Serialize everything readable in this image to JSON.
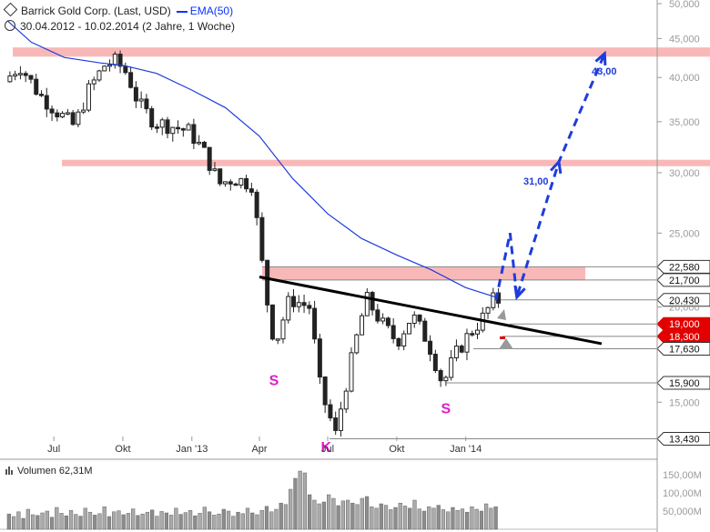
{
  "header": {
    "title": "Barrick Gold Corp. (Last, USD)",
    "ema_label": "EMA(50)",
    "period": "30.04.2012 - 10.02.2014 (2 Jahre, 1 Woche)"
  },
  "volume": {
    "label": "Volumen",
    "value": "62,31M"
  },
  "chart_data": {
    "type": "candlestick",
    "instrument": "Barrick Gold Corp.",
    "scale": "log",
    "ylim": [
      12.8,
      50
    ],
    "y_ticks": [
      "15,000",
      "20,000",
      "25,000",
      "30,000",
      "35,000",
      "40,000",
      "45,000",
      "50,000"
    ],
    "y_tick_values": [
      15,
      20,
      25,
      30,
      35,
      40,
      45,
      50
    ],
    "x_ticks": [
      "Jul",
      "Okt",
      "Jan '13",
      "Apr",
      "Jul",
      "Okt",
      "Jan '14"
    ],
    "x_tick_dates": [
      "2012-07-01",
      "2012-10-01",
      "2013-01-01",
      "2013-04-01",
      "2013-07-01",
      "2013-10-01",
      "2014-01-01"
    ],
    "x_range": [
      "2012-04-30",
      "2014-02-14"
    ],
    "grid": false,
    "colors": {
      "candle": "#222222",
      "ema": "#1e3cdc",
      "zone": "#f9b8b8",
      "level_line": "#888888",
      "trendline": "#000000",
      "projection": "#1e3cdc",
      "label_red": "#e20000",
      "marker_pink": "#e01cc8",
      "volume": "#aaaaaa"
    },
    "ema_series": {
      "name": "EMA(50)",
      "dates": [
        "2012-04-30",
        "2012-06-01",
        "2012-07-15",
        "2012-09-01",
        "2012-10-01",
        "2012-11-15",
        "2013-01-01",
        "2013-02-15",
        "2013-04-01",
        "2013-05-15",
        "2013-07-01",
        "2013-08-15",
        "2013-10-01",
        "2013-11-15",
        "2014-01-01",
        "2014-02-10"
      ],
      "values": [
        47.5,
        44.5,
        42.5,
        41.8,
        41.5,
        40.5,
        38.5,
        36.5,
        33.5,
        29.5,
        26.5,
        24.6,
        23.4,
        22.4,
        21.2,
        20.6
      ]
    },
    "price_points": {
      "dates": [
        "2012-04-30",
        "2012-05-20",
        "2012-06-15",
        "2012-07-10",
        "2012-08-01",
        "2012-08-20",
        "2012-09-10",
        "2012-09-25",
        "2012-10-10",
        "2012-10-25",
        "2012-11-15",
        "2012-12-10",
        "2013-01-01",
        "2013-01-20",
        "2013-02-10",
        "2013-03-01",
        "2013-03-25",
        "2013-04-12",
        "2013-04-25",
        "2013-05-15",
        "2013-06-10",
        "2013-06-25",
        "2013-07-15",
        "2013-08-05",
        "2013-08-25",
        "2013-09-15",
        "2013-10-05",
        "2013-10-25",
        "2013-11-15",
        "2013-12-05",
        "2013-12-20",
        "2014-01-10",
        "2014-01-25",
        "2014-02-10"
      ],
      "values": [
        39.5,
        41.5,
        38.0,
        36.0,
        34.5,
        38.5,
        41.5,
        42.0,
        40.5,
        37.0,
        35.0,
        34.5,
        34.0,
        32.0,
        29.0,
        29.5,
        29.0,
        21.0,
        17.8,
        20.5,
        20.0,
        15.5,
        13.6,
        17.0,
        20.5,
        19.0,
        18.0,
        19.5,
        18.0,
        15.8,
        17.2,
        18.5,
        19.2,
        20.4
      ]
    },
    "zones": [
      {
        "from": 42.6,
        "to": 43.8
      },
      {
        "from": 30.6,
        "to": 31.2
      },
      {
        "from": 21.7,
        "to": 22.58
      }
    ],
    "levels": [
      {
        "value": 22.58,
        "label": "22,580"
      },
      {
        "value": 21.7,
        "label": "21,700"
      },
      {
        "value": 20.43,
        "label": "20,430"
      },
      {
        "value": 19.0,
        "label": "19,000",
        "highlight": true
      },
      {
        "value": 18.3,
        "label": "18,300",
        "highlight": true
      },
      {
        "value": 17.63,
        "label": "17,630"
      },
      {
        "value": 15.9,
        "label": "15,900"
      },
      {
        "value": 13.43,
        "label": "13,430"
      }
    ],
    "trendline": {
      "from": [
        "2013-04-01",
        21.9
      ],
      "to": [
        "2014-07-01",
        17.9
      ]
    },
    "projection": {
      "points": [
        [
          "2014-02-10",
          20.4
        ],
        [
          "2014-03-01",
          25.0
        ],
        [
          "2014-03-10",
          20.6
        ],
        [
          "2014-05-05",
          31.0
        ],
        [
          "2014-07-05",
          43.0
        ]
      ],
      "labels": [
        {
          "text": "31,00",
          "value": 31.0
        },
        {
          "text": "43,00",
          "value": 43.0
        }
      ]
    },
    "annotations": [
      {
        "text": "S",
        "date": "2013-04-20",
        "value": 15.8
      },
      {
        "text": "K",
        "date": "2013-06-28",
        "value": 12.9
      },
      {
        "text": "S",
        "date": "2013-12-05",
        "value": 14.5
      }
    ],
    "volume_axis": {
      "ticks": [
        "50,000M",
        "100,00M",
        "150,00M"
      ],
      "tick_values": [
        50,
        100,
        150
      ]
    },
    "volume_series": [
      42,
      35,
      48,
      30,
      55,
      40,
      38,
      45,
      50,
      33,
      60,
      44,
      37,
      52,
      41,
      36,
      58,
      47,
      39,
      43,
      62,
      35,
      48,
      51,
      40,
      44,
      56,
      38,
      42,
      47,
      53,
      36,
      49,
      45,
      39,
      58,
      41,
      46,
      52,
      37,
      44,
      61,
      48,
      39,
      42,
      55,
      50,
      36,
      47,
      43,
      58,
      45,
      40,
      52,
      63,
      48,
      55,
      72,
      68,
      110,
      140,
      160,
      155,
      95,
      80,
      70,
      75,
      95,
      85,
      65,
      78,
      80,
      72,
      68,
      85,
      90,
      62,
      58,
      70,
      66,
      54,
      60,
      72,
      64,
      58,
      80,
      56,
      50,
      62,
      58,
      66,
      54,
      48,
      60,
      52,
      56,
      47,
      62,
      55,
      50,
      70,
      58,
      62
    ]
  }
}
